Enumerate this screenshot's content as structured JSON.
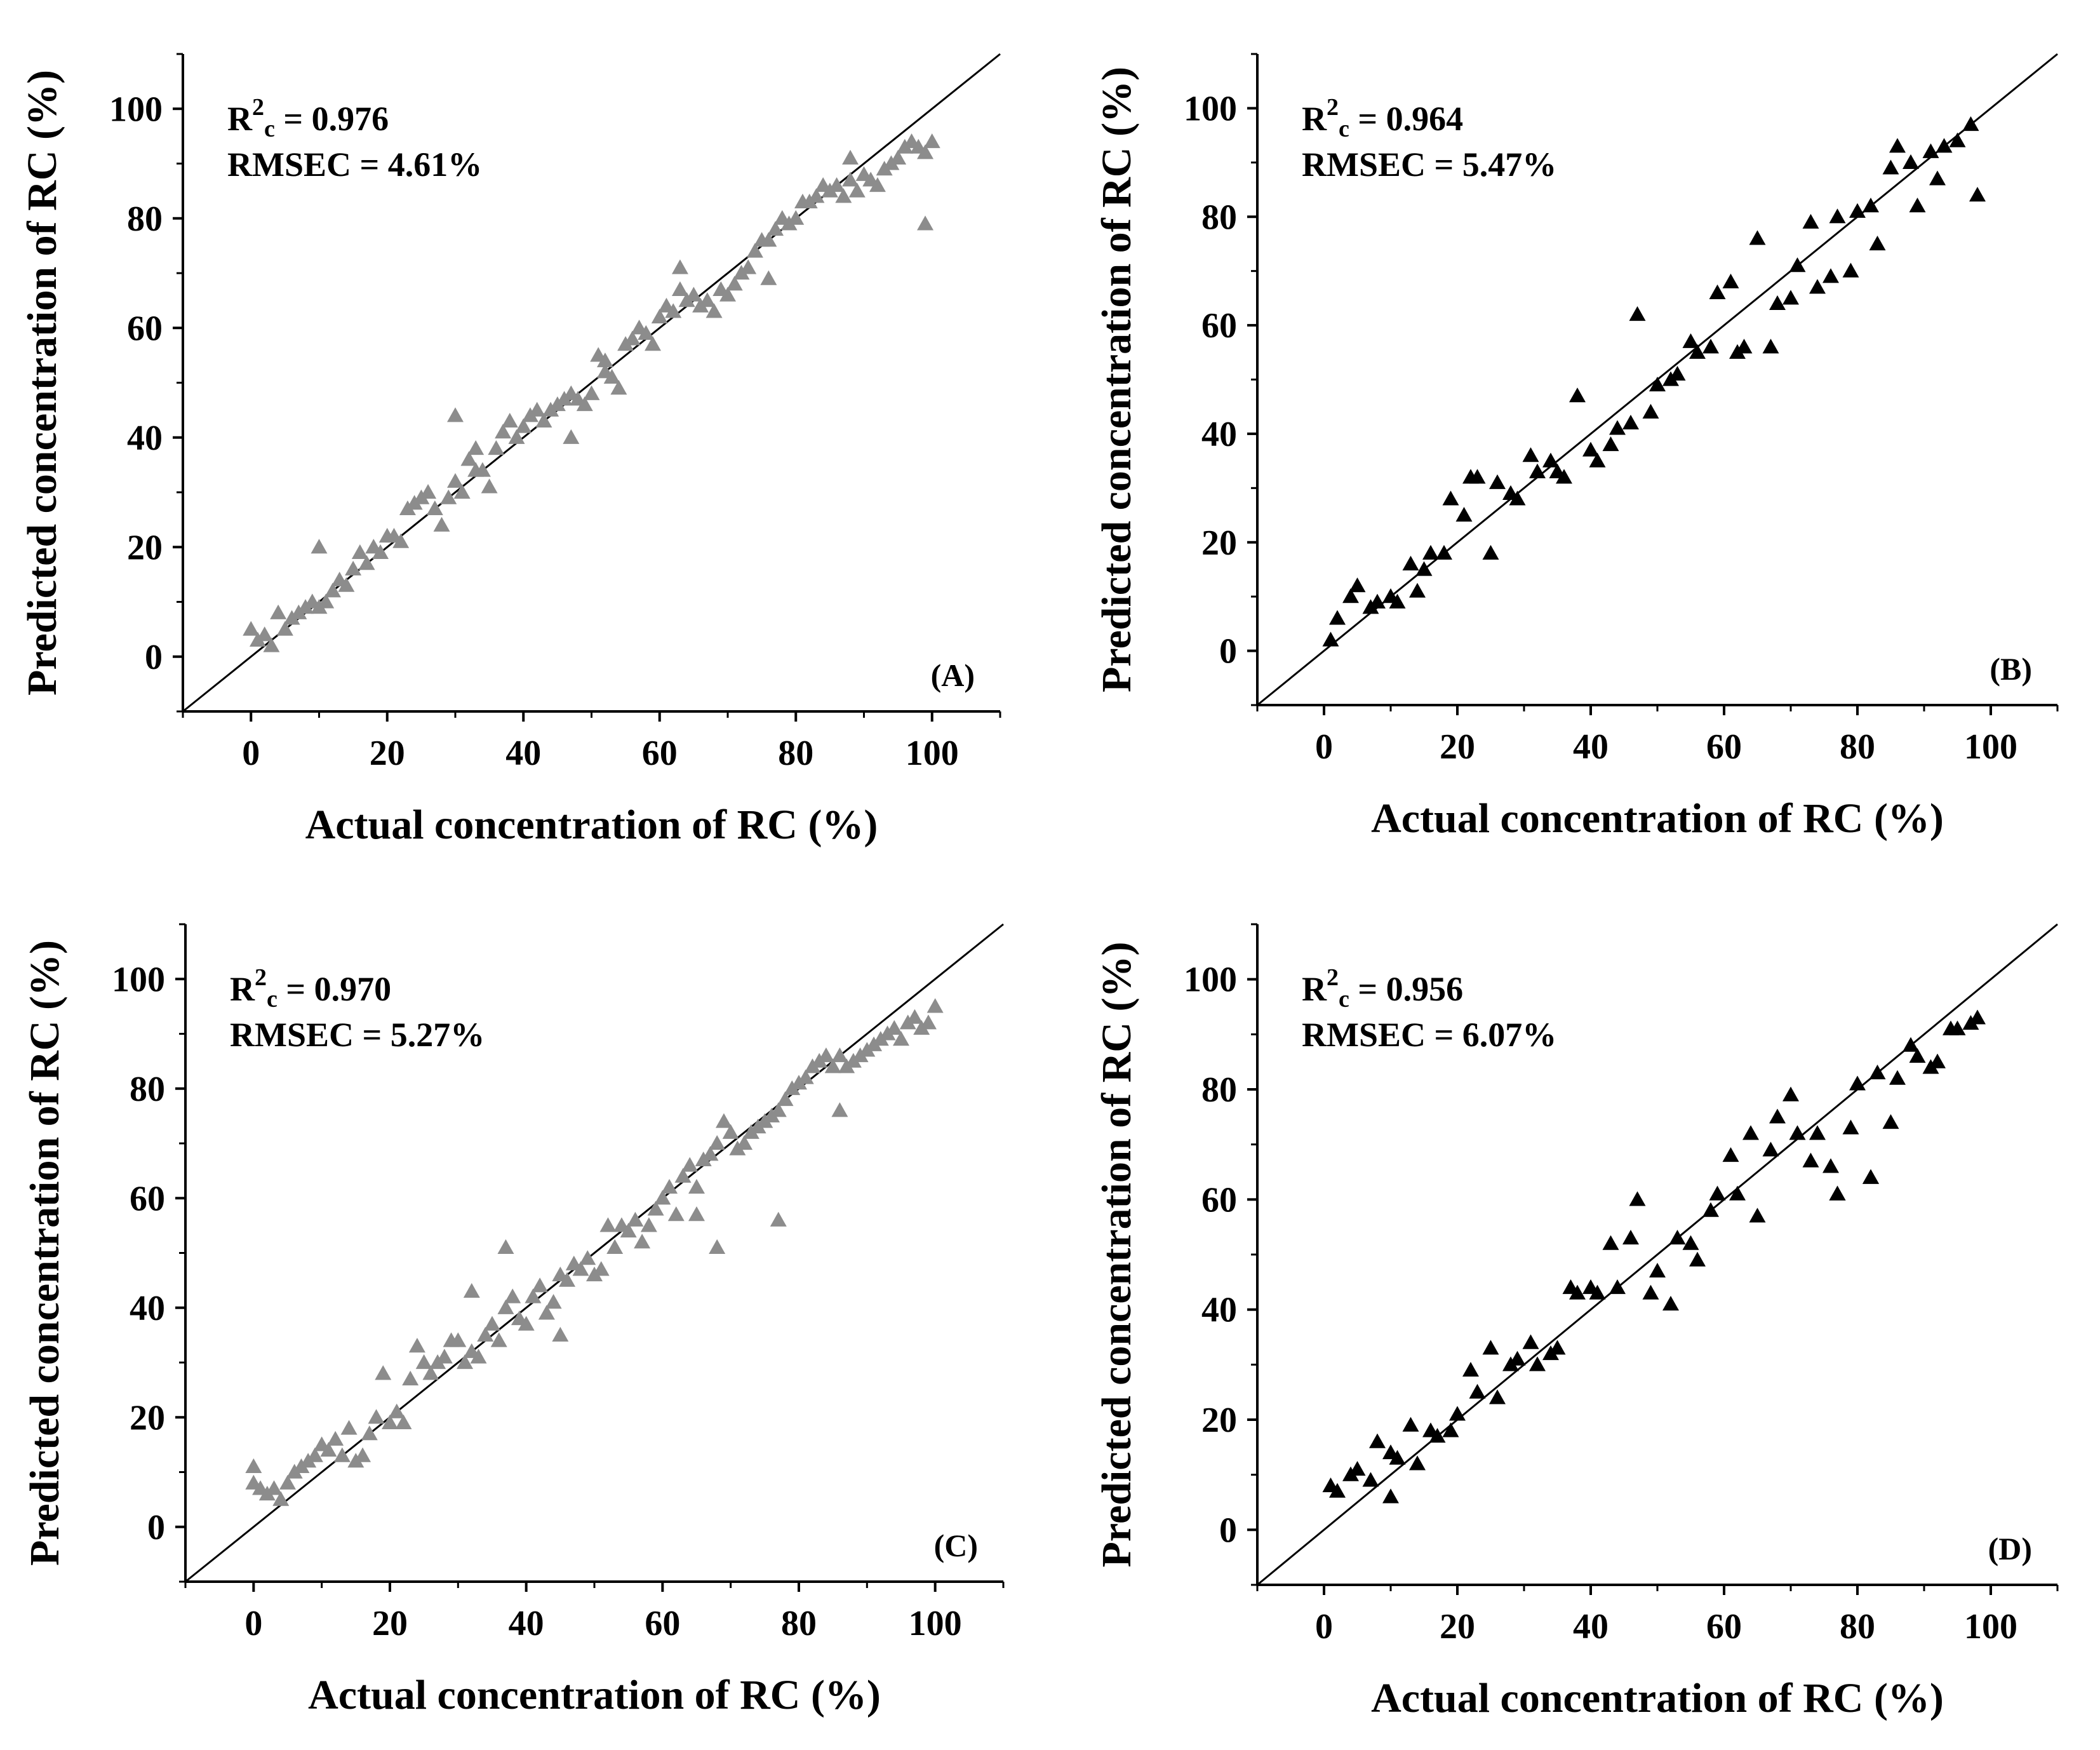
{
  "figure": {
    "colors": {
      "gray_marker": "#8c8c8c",
      "black_marker": "#000000",
      "axis": "#000000"
    }
  },
  "chart_data": [
    {
      "panel": "(A)",
      "type": "scatter",
      "marker": "triangle",
      "marker_color": "#8c8c8c",
      "xlabel": "Actual concentration of RC (%)",
      "ylabel": "Predicted concentration of RC (%)",
      "xlim": [
        -10,
        110
      ],
      "ylim": [
        -10,
        110
      ],
      "xticks": [
        0,
        20,
        40,
        60,
        80,
        100
      ],
      "yticks": [
        0,
        20,
        40,
        60,
        80,
        100
      ],
      "stat_r2_label": "R",
      "stat_r2_sup": "2",
      "stat_r2_sub": "c",
      "stat_r2_value": " = 0.976",
      "stat_rmse": "RMSEC = 4.61%",
      "reference_line": "y = x",
      "x": [
        0,
        1,
        2,
        3,
        4,
        5,
        6,
        7,
        8,
        9,
        10,
        11,
        12,
        13,
        14,
        15,
        16,
        17,
        18,
        19,
        20,
        21,
        22,
        23,
        24,
        25,
        26,
        27,
        28,
        29,
        30,
        31,
        32,
        33,
        34,
        35,
        36,
        37,
        38,
        39,
        40,
        41,
        42,
        43,
        44,
        45,
        46,
        47,
        48,
        49,
        50,
        51,
        52,
        53,
        54,
        55,
        56,
        57,
        58,
        59,
        60,
        61,
        62,
        63,
        64,
        65,
        66,
        67,
        68,
        69,
        70,
        71,
        72,
        73,
        74,
        75,
        76,
        77,
        78,
        79,
        80,
        81,
        82,
        83,
        84,
        85,
        86,
        87,
        88,
        89,
        90,
        91,
        92,
        93,
        94,
        95,
        96,
        97,
        98,
        99,
        100,
        10,
        30,
        47,
        63,
        76,
        99,
        33,
        52,
        88
      ],
      "y": [
        5,
        3,
        4,
        2,
        8,
        5,
        7,
        8,
        9,
        10,
        9,
        10,
        12,
        14,
        13,
        16,
        19,
        17,
        20,
        19,
        22,
        22,
        21,
        27,
        28,
        29,
        30,
        27,
        24,
        29,
        32,
        30,
        36,
        34,
        34,
        31,
        38,
        41,
        43,
        40,
        42,
        44,
        45,
        43,
        45,
        46,
        47,
        48,
        47,
        46,
        48,
        55,
        52,
        51,
        49,
        57,
        58,
        60,
        59,
        57,
        62,
        64,
        63,
        67,
        65,
        66,
        64,
        65,
        63,
        67,
        66,
        68,
        70,
        71,
        74,
        76,
        76,
        78,
        80,
        79,
        80,
        83,
        83,
        84,
        86,
        85,
        86,
        84,
        87,
        85,
        88,
        87,
        86,
        89,
        90,
        91,
        93,
        94,
        93,
        92,
        94,
        20,
        44,
        40,
        71,
        69,
        79,
        38,
        54,
        91
      ]
    },
    {
      "panel": "(B)",
      "type": "scatter",
      "marker": "triangle",
      "marker_color": "#000000",
      "xlabel": "Actual concentration of RC (%)",
      "ylabel": "Predicted concentration of RC (%)",
      "xlim": [
        -10,
        110
      ],
      "ylim": [
        -10,
        110
      ],
      "xticks": [
        0,
        20,
        40,
        60,
        80,
        100
      ],
      "yticks": [
        0,
        20,
        40,
        60,
        80,
        100
      ],
      "stat_r2_label": "R",
      "stat_r2_sup": "2",
      "stat_r2_sub": "c",
      "stat_r2_value": " = 0.964",
      "stat_rmse": "RMSEC = 5.47%",
      "reference_line": "y = x",
      "x": [
        1,
        2,
        4,
        5,
        7,
        8,
        10,
        11,
        13,
        14,
        15,
        16,
        18,
        19,
        21,
        22,
        23,
        25,
        26,
        28,
        29,
        31,
        32,
        34,
        35,
        36,
        38,
        40,
        41,
        43,
        44,
        46,
        47,
        49,
        50,
        52,
        53,
        55,
        56,
        58,
        59,
        61,
        62,
        63,
        65,
        67,
        68,
        70,
        71,
        73,
        74,
        76,
        77,
        79,
        80,
        82,
        83,
        85,
        86,
        88,
        89,
        91,
        92,
        93,
        95,
        97,
        98
      ],
      "y": [
        2,
        6,
        10,
        12,
        8,
        9,
        10,
        9,
        16,
        11,
        15,
        18,
        18,
        28,
        25,
        32,
        32,
        18,
        31,
        29,
        28,
        36,
        33,
        35,
        33,
        32,
        47,
        37,
        35,
        38,
        41,
        42,
        62,
        44,
        49,
        50,
        51,
        57,
        55,
        56,
        66,
        68,
        55,
        56,
        76,
        56,
        64,
        65,
        71,
        79,
        67,
        69,
        80,
        70,
        81,
        82,
        75,
        89,
        93,
        90,
        82,
        92,
        87,
        93,
        94,
        97,
        84
      ]
    },
    {
      "panel": "(C)",
      "type": "scatter",
      "marker": "triangle",
      "marker_color": "#8c8c8c",
      "xlabel": "Actual concentration of RC (%)",
      "ylabel": "Predicted concentration of RC (%)",
      "xlim": [
        -10,
        110
      ],
      "ylim": [
        -10,
        110
      ],
      "xticks": [
        0,
        20,
        40,
        60,
        80,
        100
      ],
      "yticks": [
        0,
        20,
        40,
        60,
        80,
        100
      ],
      "stat_r2_label": "R",
      "stat_r2_sup": "2",
      "stat_r2_sub": "c",
      "stat_r2_value": " = 0.970",
      "stat_rmse": "RMSEC = 5.27%",
      "reference_line": "y = x",
      "x": [
        0,
        1,
        2,
        3,
        4,
        5,
        6,
        7,
        8,
        9,
        10,
        11,
        12,
        13,
        14,
        15,
        16,
        17,
        18,
        19,
        20,
        21,
        22,
        23,
        24,
        25,
        26,
        27,
        28,
        29,
        30,
        31,
        32,
        33,
        34,
        35,
        36,
        37,
        38,
        39,
        40,
        41,
        42,
        43,
        44,
        45,
        46,
        47,
        48,
        49,
        50,
        51,
        52,
        53,
        54,
        55,
        56,
        57,
        58,
        59,
        60,
        61,
        62,
        63,
        64,
        65,
        66,
        67,
        68,
        69,
        70,
        71,
        72,
        73,
        74,
        75,
        76,
        77,
        78,
        79,
        80,
        81,
        82,
        83,
        84,
        85,
        86,
        87,
        88,
        89,
        90,
        91,
        92,
        93,
        94,
        95,
        96,
        97,
        98,
        99,
        100,
        0,
        32,
        37,
        68,
        77,
        86,
        45,
        65
      ],
      "y": [
        8,
        7,
        6,
        7,
        5,
        8,
        10,
        11,
        12,
        13,
        15,
        14,
        16,
        13,
        18,
        12,
        13,
        17,
        20,
        28,
        19,
        21,
        19,
        27,
        33,
        30,
        28,
        30,
        31,
        34,
        34,
        30,
        32,
        31,
        35,
        37,
        34,
        40,
        42,
        38,
        37,
        42,
        44,
        39,
        41,
        46,
        45,
        48,
        47,
        49,
        46,
        47,
        55,
        51,
        55,
        54,
        56,
        52,
        55,
        58,
        60,
        62,
        57,
        64,
        66,
        62,
        67,
        68,
        70,
        74,
        72,
        69,
        70,
        72,
        73,
        74,
        75,
        76,
        78,
        80,
        81,
        82,
        84,
        85,
        86,
        84,
        86,
        84,
        85,
        86,
        87,
        88,
        89,
        90,
        91,
        89,
        92,
        93,
        91,
        92,
        95,
        11,
        43,
        51,
        51,
        56,
        76,
        35,
        57
      ]
    },
    {
      "panel": "(D)",
      "type": "scatter",
      "marker": "triangle",
      "marker_color": "#000000",
      "xlabel": "Actual concentration of RC (%)",
      "ylabel": "Predicted concentration of RC (%)",
      "xlim": [
        -10,
        110
      ],
      "ylim": [
        -10,
        110
      ],
      "xticks": [
        0,
        20,
        40,
        60,
        80,
        100
      ],
      "yticks": [
        0,
        20,
        40,
        60,
        80,
        100
      ],
      "stat_r2_label": "R",
      "stat_r2_sup": "2",
      "stat_r2_sub": "c",
      "stat_r2_value": " = 0.956",
      "stat_rmse": "RMSEC = 6.07%",
      "reference_line": "y = x",
      "x": [
        1,
        2,
        4,
        5,
        7,
        8,
        10,
        11,
        13,
        14,
        16,
        17,
        19,
        20,
        22,
        23,
        25,
        26,
        28,
        29,
        31,
        32,
        34,
        35,
        37,
        38,
        40,
        41,
        43,
        44,
        46,
        47,
        49,
        50,
        52,
        53,
        55,
        56,
        58,
        59,
        61,
        62,
        64,
        65,
        67,
        68,
        70,
        71,
        73,
        74,
        76,
        77,
        79,
        80,
        82,
        83,
        85,
        86,
        88,
        89,
        91,
        92,
        94,
        95,
        97,
        98,
        10,
        77,
        82
      ],
      "y": [
        8,
        7,
        10,
        11,
        9,
        16,
        14,
        13,
        19,
        12,
        18,
        17,
        18,
        21,
        29,
        25,
        33,
        24,
        30,
        31,
        34,
        30,
        32,
        33,
        44,
        43,
        44,
        43,
        52,
        44,
        53,
        60,
        43,
        47,
        41,
        53,
        52,
        49,
        58,
        61,
        68,
        61,
        72,
        57,
        69,
        75,
        79,
        72,
        67,
        72,
        66,
        61,
        73,
        81,
        64,
        83,
        74,
        82,
        88,
        86,
        84,
        85,
        91,
        91,
        92,
        93,
        6,
        61,
        64
      ]
    }
  ]
}
